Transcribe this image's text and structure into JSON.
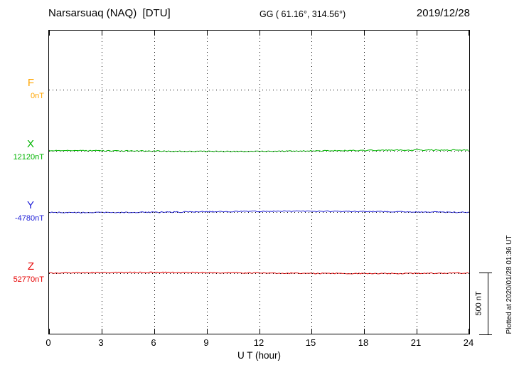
{
  "header": {
    "station_title": "Narsarsuaq (NAQ)  [DTU]",
    "geo_coords": "GG ( 61.16°, 314.56°)",
    "date": "2019/12/28"
  },
  "footer": {
    "plotted_at": "Plotted at 2020/01/28 01:36 UT"
  },
  "chart_data": {
    "type": "line",
    "title": "Narsarsuaq (NAQ) [DTU] magnetogram for 2019/12/28",
    "xlabel": "U T (hour)",
    "xlim": [
      0,
      24
    ],
    "x_ticks": [
      0,
      3,
      6,
      9,
      12,
      15,
      18,
      21,
      24
    ],
    "grid": "dotted",
    "legend_position": "left margin",
    "scale_bar_label": "500 nT",
    "scale_bar_nT": 500,
    "series": [
      {
        "name": "F",
        "baseline_label": "0nT",
        "baseline_nT": 0,
        "color": "#ffa500",
        "trace_drawn": false,
        "values": [
          0,
          0,
          0,
          0,
          0,
          0,
          0,
          0,
          0
        ],
        "note": "flat at baseline, no visible trace variation"
      },
      {
        "name": "X",
        "baseline_label": "12120nT",
        "baseline_nT": 12120,
        "color": "#00b400",
        "trace_drawn": true,
        "values": [
          12120,
          12120,
          12120,
          12120,
          12122,
          12118,
          12120,
          12120,
          12120
        ],
        "note": "nearly flat, variation under ~20 nT"
      },
      {
        "name": "Y",
        "baseline_label": "-4780nT",
        "baseline_nT": -4780,
        "color": "#2424d8",
        "trace_drawn": true,
        "values": [
          -4780,
          -4781,
          -4780,
          -4780,
          -4778,
          -4782,
          -4780,
          -4780,
          -4780
        ],
        "note": "nearly flat, variation under ~20 nT"
      },
      {
        "name": "Z",
        "baseline_label": "52770nT",
        "baseline_nT": 52770,
        "color": "#e60000",
        "trace_drawn": true,
        "values": [
          52770,
          52770,
          52771,
          52769,
          52770,
          52770,
          52771,
          52770,
          52770
        ],
        "note": "nearly flat, variation under ~20 nT"
      }
    ]
  }
}
